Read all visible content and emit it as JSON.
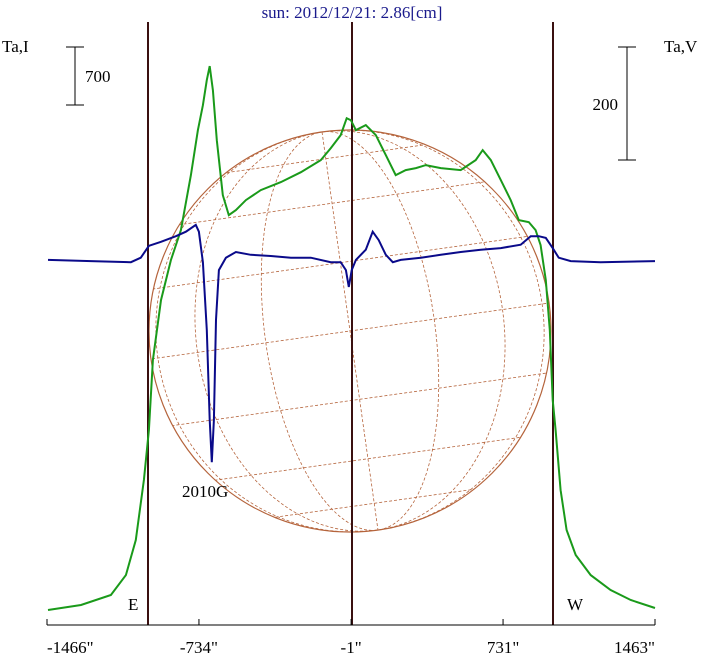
{
  "chart_data": {
    "type": "line",
    "title": "sun: 2012/12/21: 2.86[cm]",
    "y_label": "Ta,I",
    "y2_label": "Ta,V",
    "annotations": [
      "2010G",
      "E",
      "W"
    ],
    "scale_y": 700,
    "scale_y2": 200,
    "xlim": [
      -1466,
      1463
    ],
    "xticks": [
      {
        "value": -1466,
        "label": "-1466\""
      },
      {
        "value": -734,
        "label": "-734\""
      },
      {
        "value": -1,
        "label": "-1\""
      },
      {
        "value": 731,
        "label": "731\""
      },
      {
        "value": 1463,
        "label": "1463\""
      }
    ],
    "ylim": [
      0,
      7280
    ],
    "y2lim": [
      -646,
      421
    ],
    "series": [
      {
        "name": "Ta,I",
        "color": "#1a9a1a",
        "x": [
          -1461,
          -1302,
          -1158,
          -1086,
          -1038,
          -999,
          -975,
          -956,
          -917,
          -869,
          -821,
          -773,
          -739,
          -715,
          -696,
          -682,
          -667,
          -648,
          -619,
          -590,
          -556,
          -508,
          -436,
          -339,
          -243,
          -147,
          -99,
          -51,
          -22,
          -2,
          22,
          70,
          118,
          166,
          214,
          262,
          311,
          359,
          431,
          527,
          599,
          633,
          672,
          720,
          768,
          807,
          855,
          888,
          912,
          937,
          956,
          970,
          984,
          1008,
          1037,
          1081,
          1153,
          1249,
          1346,
          1463
        ],
        "values": [
          181,
          241,
          362,
          603,
          1026,
          1750,
          2354,
          3199,
          3923,
          4406,
          4768,
          5432,
          5975,
          6276,
          6578,
          6747,
          6457,
          5854,
          5190,
          4949,
          5009,
          5130,
          5250,
          5347,
          5467,
          5613,
          5757,
          5914,
          6119,
          6095,
          5975,
          6035,
          5914,
          5673,
          5432,
          5492,
          5516,
          5552,
          5516,
          5492,
          5613,
          5733,
          5613,
          5371,
          5130,
          4888,
          4864,
          4768,
          4587,
          4164,
          3561,
          2716,
          2354,
          1629,
          1147,
          845,
          603,
          422,
          302,
          205
        ]
      },
      {
        "name": "Ta,V",
        "color": "#0a0a8a",
        "axis": "y2",
        "x": [
          -1461,
          -1254,
          -1062,
          -1014,
          -975,
          -917,
          -845,
          -797,
          -749,
          -734,
          -715,
          -696,
          -682,
          -672,
          -662,
          -652,
          -638,
          -604,
          -556,
          -484,
          -388,
          -291,
          -195,
          -99,
          -51,
          -26,
          -12,
          2,
          22,
          70,
          103,
          132,
          166,
          200,
          238,
          335,
          431,
          527,
          624,
          720,
          816,
          864,
          903,
          937,
          970,
          999,
          1057,
          1201,
          1463
        ],
        "values": [
          0,
          -2,
          -4,
          4,
          25,
          32,
          42,
          50,
          62,
          50,
          -4,
          -124,
          -283,
          -358,
          -283,
          -106,
          -18,
          4,
          14,
          9,
          7,
          4,
          4,
          -4,
          -4,
          -18,
          -48,
          -18,
          0,
          18,
          50,
          35,
          9,
          -4,
          0,
          4,
          9,
          14,
          18,
          21,
          27,
          42,
          42,
          39,
          21,
          4,
          -2,
          -4,
          -2
        ]
      }
    ]
  }
}
